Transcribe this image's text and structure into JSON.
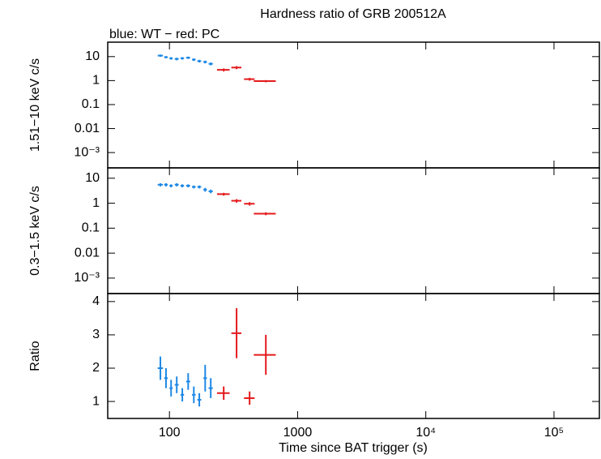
{
  "chart_data": [
    {
      "type": "scatter",
      "title": "Hardness ratio of GRB 200512A",
      "subtitle": "blue: WT − red: PC",
      "ylabel": "1.51−10 keV c/s",
      "ylog": true,
      "ylim": [
        0.00023,
        40
      ],
      "yticks": [
        10,
        1,
        0.1,
        0.01,
        {
          "value": 0.001,
          "label": "10⁻³"
        }
      ],
      "series": [
        {
          "color": "#1e88e5",
          "x": [
            85,
            94,
            103,
            114,
            126,
            140,
            155,
            171,
            190,
            210
          ],
          "xerr": [
            4,
            3,
            3,
            4,
            4,
            5,
            5,
            6,
            6,
            8
          ],
          "values": [
            11,
            9.5,
            8.5,
            8,
            8.5,
            9,
            7.5,
            6.5,
            6,
            5
          ],
          "yerr": [
            1.2,
            1,
            1,
            1,
            1,
            1,
            0.9,
            0.8,
            0.8,
            0.7
          ]
        },
        {
          "color": "#e41a1c",
          "x": [
            265,
            334,
            422,
            565
          ],
          "xerr": [
            30,
            30,
            40,
            110
          ],
          "values": [
            2.8,
            3.5,
            1.15,
            0.95
          ],
          "yerr": [
            0.4,
            0.5,
            0.15,
            0.1
          ]
        }
      ]
    },
    {
      "type": "scatter",
      "ylabel": "0.3−1.5 keV c/s",
      "ylog": true,
      "ylim": [
        0.00024,
        26
      ],
      "yticks": [
        10,
        1,
        0.1,
        0.01,
        {
          "value": 0.001,
          "label": "10⁻³"
        }
      ],
      "series": [
        {
          "color": "#1e88e5",
          "x": [
            85,
            94,
            103,
            114,
            126,
            140,
            155,
            171,
            190,
            210
          ],
          "xerr": [
            4,
            3,
            3,
            4,
            4,
            5,
            5,
            6,
            6,
            8
          ],
          "values": [
            5.5,
            5.5,
            5,
            5.5,
            5,
            5,
            4.5,
            4.5,
            3.5,
            3
          ],
          "yerr": [
            0.8,
            0.8,
            0.7,
            0.8,
            0.7,
            0.7,
            0.6,
            0.6,
            0.6,
            0.5
          ]
        },
        {
          "color": "#e41a1c",
          "x": [
            265,
            334,
            422,
            565
          ],
          "xerr": [
            30,
            30,
            40,
            110
          ],
          "values": [
            2.3,
            1.25,
            0.95,
            0.38
          ],
          "yerr": [
            0.3,
            0.2,
            0.15,
            0.05
          ]
        }
      ]
    },
    {
      "type": "scatter",
      "ylabel": "Ratio",
      "ylog": false,
      "ylim": [
        0.49,
        4.24
      ],
      "yticks": [
        1,
        2,
        3,
        4
      ],
      "xlabel": "Time since BAT trigger (s)",
      "xlog": true,
      "xlim": [
        33,
        226000
      ],
      "xticks": [
        100,
        1000,
        {
          "value": 10000,
          "label": "10⁴"
        },
        {
          "value": 100000,
          "label": "10⁵"
        }
      ],
      "series": [
        {
          "color": "#1e88e5",
          "x": [
            85,
            94,
            103,
            114,
            126,
            140,
            155,
            171,
            190,
            210
          ],
          "xerr": [
            4,
            3,
            3,
            4,
            4,
            5,
            5,
            6,
            6,
            8
          ],
          "values": [
            2.0,
            1.7,
            1.4,
            1.5,
            1.2,
            1.6,
            1.2,
            1.05,
            1.7,
            1.4
          ],
          "yerr": [
            0.35,
            0.3,
            0.25,
            0.25,
            0.2,
            0.25,
            0.25,
            0.2,
            0.4,
            0.3
          ]
        },
        {
          "color": "#e41a1c",
          "x": [
            265,
            334,
            422,
            565
          ],
          "xerr": [
            30,
            30,
            40,
            110
          ],
          "values": [
            1.25,
            3.05,
            1.1,
            2.4
          ],
          "yerr": [
            0.2,
            0.75,
            0.2,
            0.6
          ]
        }
      ]
    }
  ]
}
